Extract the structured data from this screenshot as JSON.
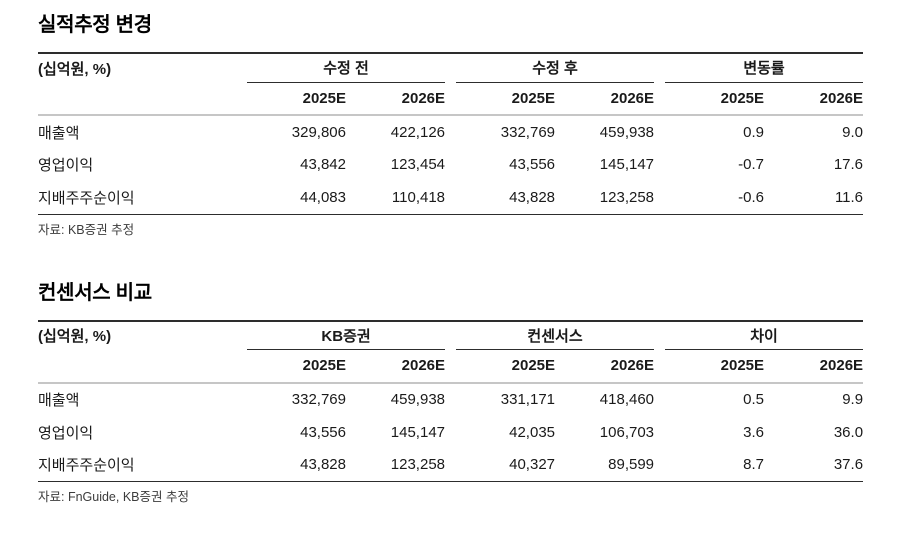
{
  "page": {
    "background": "#ffffff",
    "text_color": "#1a1a1a",
    "rule_dark": "#2d2d2d",
    "rule_light": "#c6c6c6"
  },
  "tables": [
    {
      "title": "실적추정 변경",
      "unit_label": "(십억원, %)",
      "groups": [
        "수정 전",
        "수정 후",
        "변동률"
      ],
      "year_headers": [
        "2025E",
        "2026E",
        "2025E",
        "2026E",
        "2025E",
        "2026E"
      ],
      "rows": [
        {
          "label": "매출액",
          "values": [
            "329,806",
            "422,126",
            "332,769",
            "459,938",
            "0.9",
            "9.0"
          ]
        },
        {
          "label": "영업이익",
          "values": [
            "43,842",
            "123,454",
            "43,556",
            "145,147",
            "-0.7",
            "17.6"
          ]
        },
        {
          "label": "지배주주순이익",
          "values": [
            "44,083",
            "110,418",
            "43,828",
            "123,258",
            "-0.6",
            "11.6"
          ]
        }
      ],
      "source": "자료: KB증권 추정"
    },
    {
      "title": "컨센서스 비교",
      "unit_label": "(십억원, %)",
      "groups": [
        "KB증권",
        "컨센서스",
        "차이"
      ],
      "year_headers": [
        "2025E",
        "2026E",
        "2025E",
        "2026E",
        "2025E",
        "2026E"
      ],
      "rows": [
        {
          "label": "매출액",
          "values": [
            "332,769",
            "459,938",
            "331,171",
            "418,460",
            "0.5",
            "9.9"
          ]
        },
        {
          "label": "영업이익",
          "values": [
            "43,556",
            "145,147",
            "42,035",
            "106,703",
            "3.6",
            "36.0"
          ]
        },
        {
          "label": "지배주주순이익",
          "values": [
            "43,828",
            "123,258",
            "40,327",
            "89,599",
            "8.7",
            "37.6"
          ]
        }
      ],
      "source": "자료: FnGuide, KB증권 추정"
    }
  ]
}
